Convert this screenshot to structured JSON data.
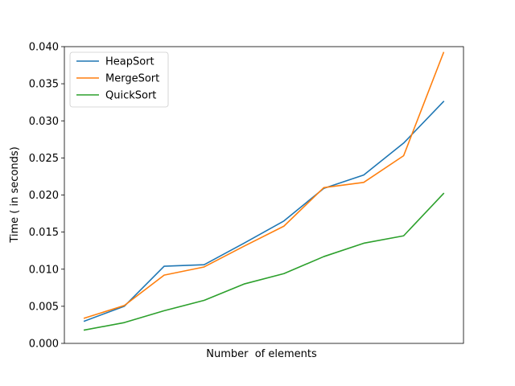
{
  "chart_data": {
    "type": "line",
    "title": "",
    "xlabel": "Number  of elements",
    "ylabel": "Time ( in seconds)",
    "x": [
      1,
      2,
      3,
      4,
      5,
      6,
      7,
      8,
      9,
      10
    ],
    "xticks_visible": false,
    "ylim": [
      0.0,
      0.04
    ],
    "yticks": [
      "0.000",
      "0.005",
      "0.010",
      "0.015",
      "0.020",
      "0.025",
      "0.030",
      "0.035",
      "0.040"
    ],
    "grid": false,
    "legend_position": "top-left",
    "series": [
      {
        "name": "HeapSort",
        "color": "#1f77b4",
        "values": [
          0.003,
          0.005,
          0.0104,
          0.0106,
          0.0135,
          0.0165,
          0.0209,
          0.0227,
          0.027,
          0.0326
        ]
      },
      {
        "name": "MergeSort",
        "color": "#ff7f0e",
        "values": [
          0.0034,
          0.0051,
          0.0092,
          0.0103,
          0.0131,
          0.0158,
          0.021,
          0.0217,
          0.0253,
          0.0392
        ]
      },
      {
        "name": "QuickSort",
        "color": "#2ca02c",
        "values": [
          0.0018,
          0.0028,
          0.0044,
          0.0058,
          0.008,
          0.0094,
          0.0117,
          0.0135,
          0.0145,
          0.0202
        ]
      }
    ]
  }
}
